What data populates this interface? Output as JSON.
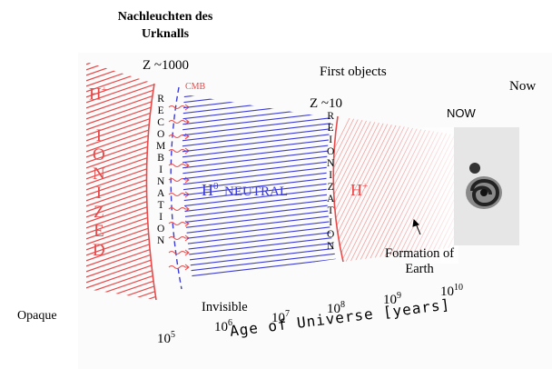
{
  "title": "Nachleuchten des Urknalls",
  "labels": {
    "z1000": "Z ~1000",
    "z10": "Z ~10",
    "cmb": "CMB",
    "first_objects": "First objects",
    "now_label": "Now",
    "now_caps": "NOW",
    "h_plus_left": "H",
    "h_plus_sup": "+",
    "ionized": "IONIZED",
    "recombination": "RECOMBINATION",
    "neutral_h": "H",
    "neutral_sup": "0",
    "neutral_word": "NEUTRAL",
    "reionization": "REIONIZATION",
    "h_plus_right": "H",
    "formation_line1": "Formation of",
    "formation_line2": "Earth",
    "opaque": "Opaque",
    "invisible": "Invisible",
    "axis_title": "Age of Universe [years]"
  },
  "ticks": [
    {
      "base": "10",
      "exp": "5"
    },
    {
      "base": "10",
      "exp": "6"
    },
    {
      "base": "10",
      "exp": "7"
    },
    {
      "base": "10",
      "exp": "8"
    },
    {
      "base": "10",
      "exp": "9"
    },
    {
      "base": "10",
      "exp": "10"
    }
  ],
  "colors": {
    "ionized": "#e84a4a",
    "neutral": "#3b3bd6",
    "reionized_hatch": "#f2a0a0"
  }
}
